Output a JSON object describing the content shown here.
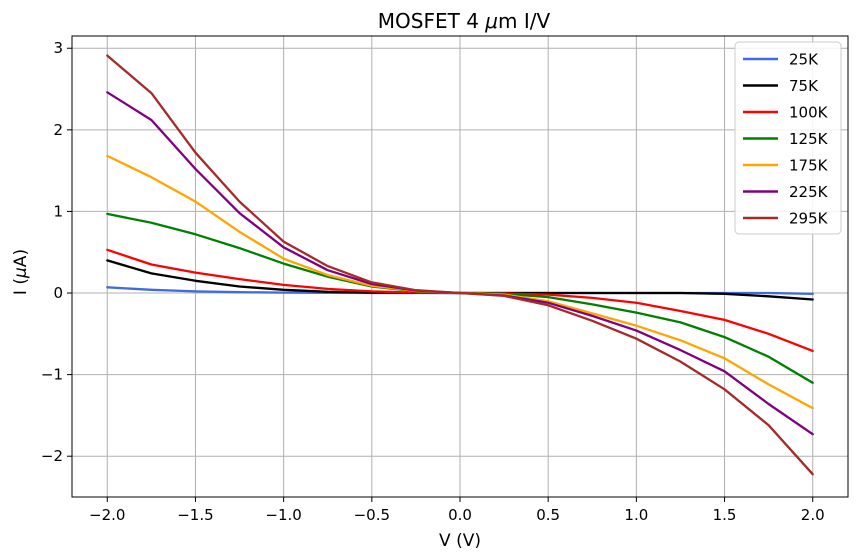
{
  "chart_data": {
    "type": "line",
    "title_prefix": "MOSFET 4 ",
    "title_mu": "μ",
    "title_suffix": "m  I/V",
    "xlabel": "V (V)",
    "ylabel_prefix": "I (",
    "ylabel_mu": "μ",
    "ylabel_suffix": "A)",
    "xlim": [
      -2.2,
      2.2
    ],
    "ylim": [
      -2.5,
      3.15
    ],
    "xticks": [
      -2.0,
      -1.5,
      -1.0,
      -0.5,
      0.0,
      0.5,
      1.0,
      1.5,
      2.0
    ],
    "xtick_labels": [
      "−2.0",
      "−1.5",
      "−1.0",
      "−0.5",
      "0.0",
      "0.5",
      "1.0",
      "1.5",
      "2.0"
    ],
    "yticks": [
      -2,
      -1,
      0,
      1,
      2,
      3
    ],
    "ytick_labels": [
      "−2",
      "−1",
      "0",
      "1",
      "2",
      "3"
    ],
    "grid": true,
    "legend_position": "top-right",
    "x": [
      -2.0,
      -1.75,
      -1.5,
      -1.25,
      -1.0,
      -0.75,
      -0.5,
      -0.25,
      0.0,
      0.25,
      0.5,
      0.75,
      1.0,
      1.25,
      1.5,
      1.75,
      2.0
    ],
    "series": [
      {
        "name": "25K",
        "color": "#4169e1",
        "values": [
          0.07,
          0.04,
          0.02,
          0.01,
          0.005,
          0.002,
          0.0,
          0.0,
          0.0,
          0.0,
          0.0,
          0.0,
          0.0,
          0.0,
          0.0,
          0.0,
          -0.01
        ]
      },
      {
        "name": "75K",
        "color": "#000000",
        "values": [
          0.4,
          0.24,
          0.15,
          0.08,
          0.04,
          0.015,
          0.005,
          0.002,
          0.0,
          0.0,
          0.0,
          0.0,
          0.0,
          0.0,
          -0.01,
          -0.04,
          -0.08
        ]
      },
      {
        "name": "100K",
        "color": "#ff0000",
        "values": [
          0.53,
          0.35,
          0.25,
          0.17,
          0.1,
          0.05,
          0.02,
          0.005,
          0.0,
          -0.005,
          -0.02,
          -0.06,
          -0.12,
          -0.22,
          -0.33,
          -0.5,
          -0.71
        ]
      },
      {
        "name": "125K",
        "color": "#008000",
        "values": [
          0.97,
          0.86,
          0.72,
          0.55,
          0.36,
          0.2,
          0.08,
          0.02,
          0.0,
          -0.01,
          -0.05,
          -0.14,
          -0.24,
          -0.36,
          -0.54,
          -0.78,
          -1.1
        ]
      },
      {
        "name": "175K",
        "color": "#ffa500",
        "values": [
          1.68,
          1.42,
          1.12,
          0.75,
          0.42,
          0.22,
          0.09,
          0.025,
          0.0,
          -0.02,
          -0.1,
          -0.25,
          -0.4,
          -0.58,
          -0.8,
          -1.12,
          -1.41
        ]
      },
      {
        "name": "225K",
        "color": "#800080",
        "values": [
          2.46,
          2.12,
          1.52,
          0.98,
          0.56,
          0.28,
          0.11,
          0.03,
          0.0,
          -0.03,
          -0.12,
          -0.28,
          -0.46,
          -0.7,
          -0.96,
          -1.36,
          -1.73
        ]
      },
      {
        "name": "295K",
        "color": "#a52a2a",
        "values": [
          2.91,
          2.45,
          1.72,
          1.12,
          0.63,
          0.33,
          0.13,
          0.035,
          0.0,
          -0.035,
          -0.15,
          -0.34,
          -0.56,
          -0.84,
          -1.18,
          -1.62,
          -2.22
        ]
      }
    ]
  }
}
